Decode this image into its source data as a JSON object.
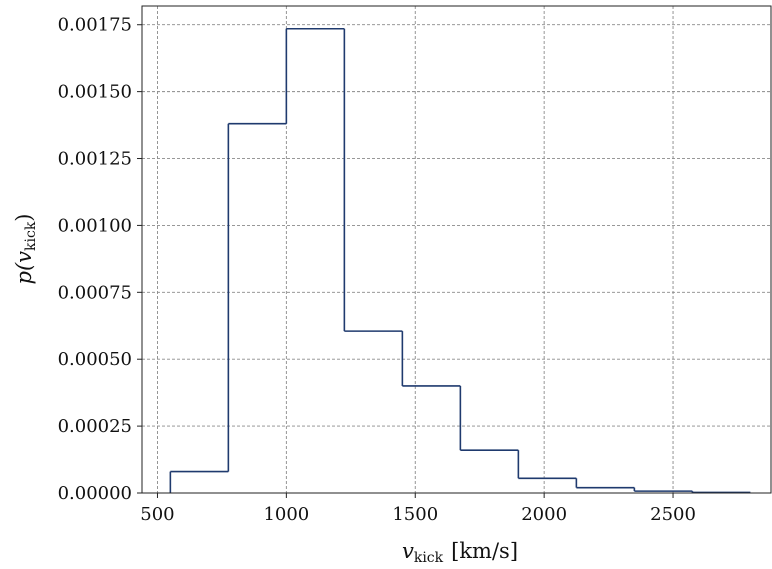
{
  "chart_data": {
    "type": "histogram-step",
    "x_label_var": "v",
    "x_label_sub": "kick",
    "x_label_unit": "[km/s]",
    "y_label_func": "p(",
    "y_label_var": "v",
    "y_label_sub": "kick",
    "y_label_close": ")",
    "xlim": [
      440,
      2880
    ],
    "ylim": [
      0,
      0.00182
    ],
    "x_ticks": [
      500,
      1000,
      1500,
      2000,
      2500
    ],
    "x_tick_labels": [
      "500",
      "1000",
      "1500",
      "2000",
      "2500"
    ],
    "y_ticks": [
      0,
      0.00025,
      0.0005,
      0.00075,
      0.001,
      0.00125,
      0.0015,
      0.00175
    ],
    "y_tick_labels": [
      "0.00000",
      "0.00025",
      "0.00050",
      "0.00075",
      "0.00100",
      "0.00125",
      "0.00150",
      "0.00175"
    ],
    "grid": true,
    "series": [
      {
        "color": "#1f3a6e",
        "bin_edges": [
          550,
          775,
          1000,
          1225,
          1450,
          1675,
          1900,
          2125,
          2350,
          2575,
          2800
        ],
        "values": [
          8e-05,
          0.00138,
          0.001735,
          0.000605,
          0.0004,
          0.00016,
          5.5e-05,
          2e-05,
          7e-06,
          2e-06
        ]
      }
    ]
  }
}
